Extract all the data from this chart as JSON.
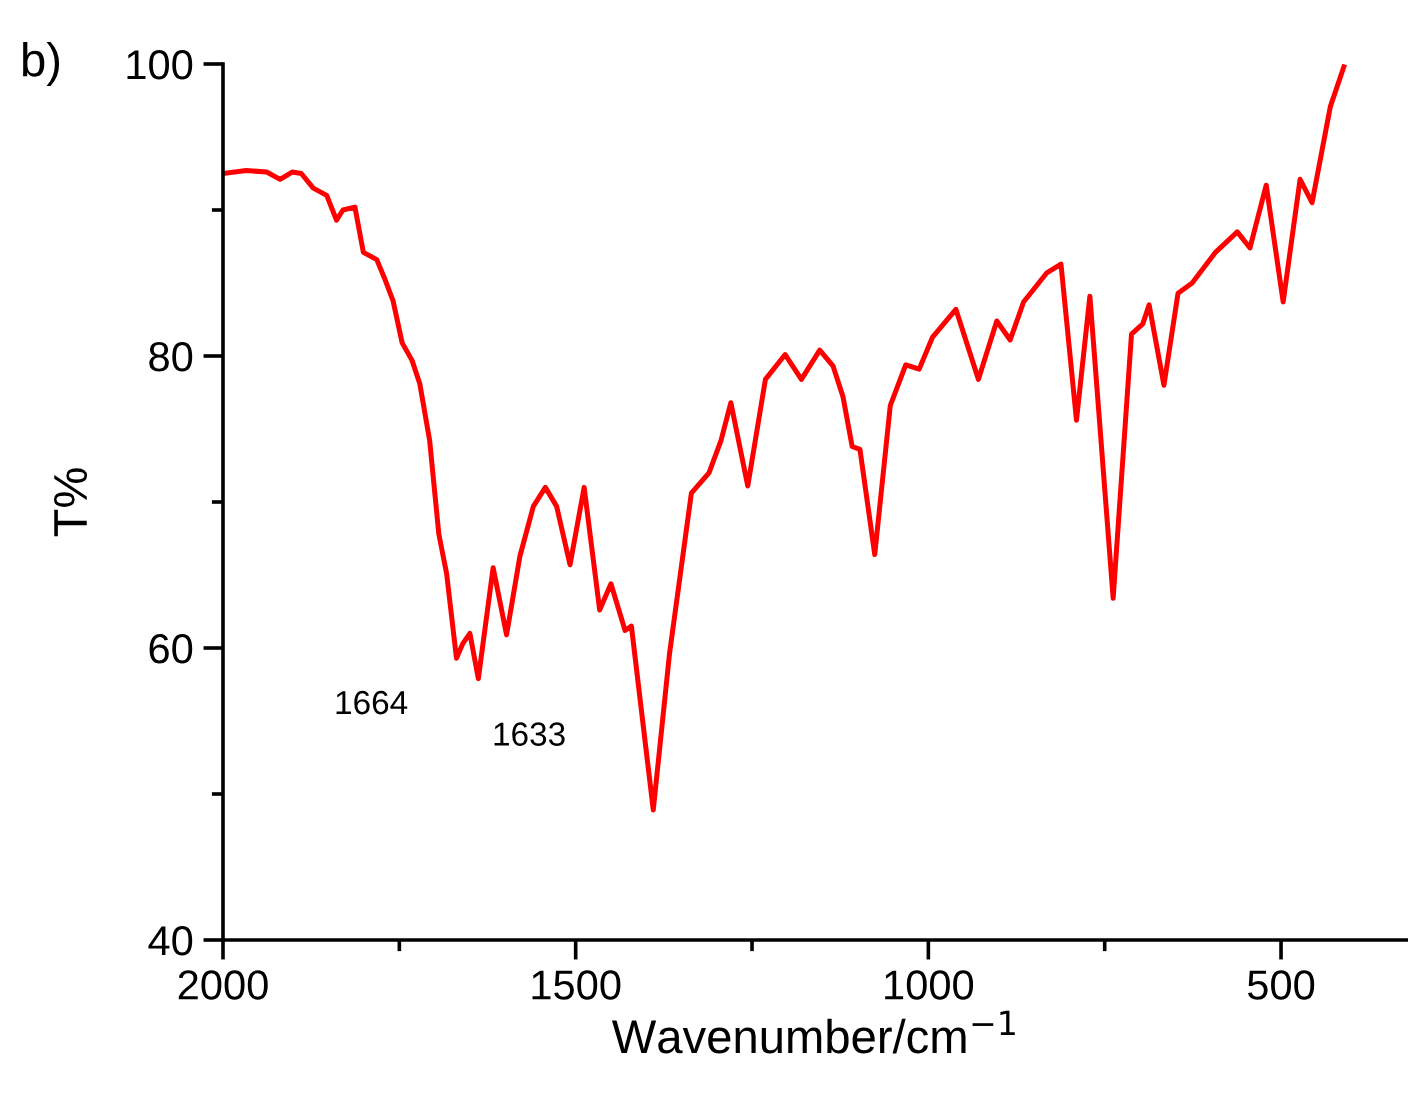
{
  "chart_data": {
    "type": "line",
    "xlabel": "Wavenumber/cm$^{−1}$",
    "ylabel": "T%",
    "annotations": [
      "b)",
      {
        "text": "1664",
        "x": 1664,
        "y": 59.3
      },
      {
        "text": "1633",
        "x": 1633,
        "y": 57.9
      }
    ],
    "xlim": [
      2000,
      320
    ],
    "xticks": [
      2000,
      1500,
      1000,
      500
    ],
    "ylim": [
      40,
      100
    ],
    "yticks": [
      40,
      60,
      80,
      100
    ],
    "grid": false,
    "legend": false,
    "marker": "none",
    "line_style": "solid",
    "series": [
      {
        "color": "#ff0000",
        "x": [
          2000,
          1967,
          1938,
          1919,
          1902,
          1889,
          1872,
          1853,
          1839,
          1830,
          1813,
          1801,
          1782,
          1770,
          1759,
          1746,
          1732,
          1721,
          1707,
          1694,
          1683,
          1669,
          1660,
          1650,
          1638,
          1617,
          1598,
          1579,
          1560,
          1543,
          1527,
          1508,
          1488,
          1466,
          1450,
          1430,
          1421,
          1390,
          1367,
          1336,
          1311,
          1294,
          1280,
          1256,
          1231,
          1203,
          1180,
          1154,
          1135,
          1121,
          1108,
          1097,
          1076,
          1054,
          1032,
          1013,
          994,
          961,
          929,
          903,
          884,
          865,
          832,
          812,
          790,
          771,
          738,
          712,
          696,
          687,
          666,
          646,
          626,
          593,
          562,
          544,
          521,
          497,
          473,
          456,
          430,
          411
        ],
        "values": [
          92.5,
          92.7,
          92.6,
          92.1,
          92.6,
          92.5,
          91.5,
          91.0,
          89.3,
          90.0,
          90.2,
          87.1,
          86.6,
          85.2,
          83.8,
          80.9,
          79.7,
          78.1,
          74.2,
          67.8,
          65.1,
          59.3,
          60.3,
          61.0,
          57.9,
          65.5,
          60.9,
          66.3,
          69.7,
          71.0,
          69.7,
          65.7,
          71.0,
          62.6,
          64.4,
          61.2,
          61.5,
          48.9,
          59.6,
          70.6,
          72.0,
          74.2,
          76.8,
          71.1,
          78.4,
          80.1,
          78.4,
          80.4,
          79.3,
          77.2,
          73.8,
          73.6,
          66.4,
          76.6,
          79.4,
          79.1,
          81.3,
          83.2,
          78.4,
          82.4,
          81.1,
          83.7,
          85.7,
          86.3,
          75.6,
          84.1,
          63.4,
          81.5,
          82.2,
          83.5,
          78.0,
          84.3,
          85.0,
          87.1,
          88.5,
          87.4,
          91.7,
          83.7,
          92.1,
          90.5,
          97.1,
          99.8
        ]
      }
    ]
  }
}
